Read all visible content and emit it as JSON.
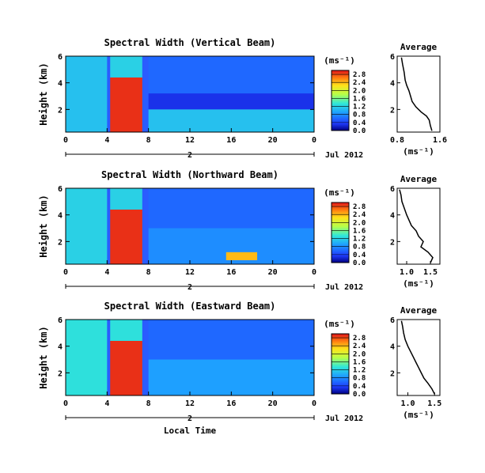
{
  "figure": {
    "panels": [
      {
        "title": "Spectral Width (Vertical Beam)",
        "date_label": "Jul 2012",
        "date_day": "2"
      },
      {
        "title": "Spectral Width (Northward Beam)",
        "date_label": "Jul 2012",
        "date_day": "2"
      },
      {
        "title": "Spectral Width (Eastward Beam)",
        "date_label": "Jul 2012",
        "date_day": "2"
      }
    ],
    "ylabel": "Height (km)",
    "xlabel": "Local Time",
    "colorbar_unit": "(ms⁻¹)",
    "profile_title": "Average",
    "profile_unit": "(ms⁻¹)"
  },
  "chart_data": [
    {
      "type": "heatmap",
      "title": "Spectral Width (Vertical Beam)",
      "ylabel": "Height (km)",
      "x_ticks": [
        "0",
        "4",
        "8",
        "12",
        "16",
        "20",
        "0"
      ],
      "y_ticks": [
        "2",
        "4",
        "6"
      ],
      "xlim": [
        0,
        24
      ],
      "ylim": [
        0.3,
        6.0
      ],
      "colorbar_ticks": [
        "0.0",
        "0.4",
        "0.8",
        "1.2",
        "1.6",
        "2.0",
        "2.4",
        "2.8"
      ],
      "colorbar_range": [
        0.0,
        3.0
      ],
      "cells": [
        {
          "t0": 0,
          "t1": 4,
          "h0": 0.3,
          "h1": 6.0,
          "v": 1.1
        },
        {
          "t0": 4.3,
          "t1": 7.4,
          "h0": 0.3,
          "h1": 4.4,
          "v": 2.9
        },
        {
          "t0": 4.3,
          "t1": 7.4,
          "h0": 4.4,
          "h1": 6.0,
          "v": 1.2
        },
        {
          "t0": 8,
          "t1": 24,
          "h0": 3.2,
          "h1": 6.0,
          "v": 0.6
        },
        {
          "t0": 8,
          "t1": 24,
          "h0": 2.0,
          "h1": 3.2,
          "v": 0.3
        },
        {
          "t0": 8,
          "t1": 24,
          "h0": 0.3,
          "h1": 2.0,
          "v": 1.1
        }
      ]
    },
    {
      "type": "heatmap",
      "title": "Spectral Width (Northward Beam)",
      "ylabel": "Height (km)",
      "x_ticks": [
        "0",
        "4",
        "8",
        "12",
        "16",
        "20",
        "0"
      ],
      "y_ticks": [
        "2",
        "4",
        "6"
      ],
      "xlim": [
        0,
        24
      ],
      "ylim": [
        0.3,
        6.0
      ],
      "colorbar_ticks": [
        "0.0",
        "0.4",
        "0.8",
        "1.2",
        "1.6",
        "2.0",
        "2.4",
        "2.8"
      ],
      "colorbar_range": [
        0.0,
        3.0
      ],
      "cells": [
        {
          "t0": 0,
          "t1": 4,
          "h0": 0.3,
          "h1": 6.0,
          "v": 1.2
        },
        {
          "t0": 4.3,
          "t1": 7.4,
          "h0": 0.3,
          "h1": 4.4,
          "v": 2.9
        },
        {
          "t0": 4.3,
          "t1": 7.4,
          "h0": 4.4,
          "h1": 6.0,
          "v": 1.2
        },
        {
          "t0": 8,
          "t1": 24,
          "h0": 3.0,
          "h1": 6.0,
          "v": 0.6
        },
        {
          "t0": 8,
          "t1": 24,
          "h0": 0.3,
          "h1": 3.0,
          "v": 0.8
        },
        {
          "t0": 15.5,
          "t1": 18.5,
          "h0": 0.6,
          "h1": 1.2,
          "v": 2.4
        }
      ]
    },
    {
      "type": "heatmap",
      "title": "Spectral Width (Eastward Beam)",
      "ylabel": "Height (km)",
      "xlabel": "Local Time",
      "x_ticks": [
        "0",
        "4",
        "8",
        "12",
        "16",
        "20",
        "0"
      ],
      "y_ticks": [
        "2",
        "4",
        "6"
      ],
      "xlim": [
        0,
        24
      ],
      "ylim": [
        0.3,
        6.0
      ],
      "colorbar_ticks": [
        "0.0",
        "0.4",
        "0.8",
        "1.2",
        "1.6",
        "2.0",
        "2.4",
        "2.8"
      ],
      "colorbar_range": [
        0.0,
        3.0
      ],
      "cells": [
        {
          "t0": 0,
          "t1": 4,
          "h0": 0.3,
          "h1": 6.0,
          "v": 1.3
        },
        {
          "t0": 4.3,
          "t1": 7.4,
          "h0": 0.3,
          "h1": 4.4,
          "v": 2.9
        },
        {
          "t0": 4.3,
          "t1": 7.4,
          "h0": 4.4,
          "h1": 6.0,
          "v": 1.3
        },
        {
          "t0": 8,
          "t1": 24,
          "h0": 3.0,
          "h1": 6.0,
          "v": 0.6
        },
        {
          "t0": 8,
          "t1": 24,
          "h0": 0.3,
          "h1": 3.0,
          "v": 0.9
        }
      ]
    },
    {
      "type": "line",
      "title": "Average",
      "xlabel": "(ms⁻¹)",
      "x_ticks": [
        "0.8",
        "1.6"
      ],
      "y_ticks": [
        "2",
        "4",
        "6"
      ],
      "xlim": [
        0.8,
        1.6
      ],
      "ylim": [
        0.3,
        6.0
      ],
      "x": [
        1.45,
        1.42,
        1.4,
        1.35,
        1.25,
        1.15,
        1.08,
        1.05,
        1.02,
        0.98,
        0.95,
        0.93,
        0.9,
        0.88
      ],
      "y": [
        0.4,
        0.8,
        1.2,
        1.5,
        1.8,
        2.2,
        2.6,
        3.0,
        3.4,
        3.8,
        4.2,
        4.8,
        5.4,
        5.9
      ]
    },
    {
      "type": "line",
      "title": "Average",
      "xlabel": "(ms⁻¹)",
      "x_ticks": [
        "1.0",
        "1.5"
      ],
      "y_ticks": [
        "2",
        "4",
        "6"
      ],
      "xlim": [
        0.8,
        1.7
      ],
      "ylim": [
        0.3,
        6.0
      ],
      "x": [
        1.5,
        1.55,
        1.45,
        1.3,
        1.35,
        1.25,
        1.2,
        1.1,
        1.05,
        1.0,
        0.95,
        0.9,
        0.88,
        0.85
      ],
      "y": [
        0.4,
        0.8,
        1.2,
        1.6,
        2.0,
        2.4,
        2.8,
        3.2,
        3.6,
        4.0,
        4.5,
        5.0,
        5.5,
        5.9
      ]
    },
    {
      "type": "line",
      "title": "Average",
      "xlabel": "(ms⁻¹)",
      "x_ticks": [
        "1.0",
        "1.5"
      ],
      "y_ticks": [
        "2",
        "4",
        "6"
      ],
      "xlim": [
        0.8,
        1.6
      ],
      "ylim": [
        0.3,
        6.0
      ],
      "x": [
        1.5,
        1.45,
        1.38,
        1.3,
        1.25,
        1.2,
        1.15,
        1.1,
        1.05,
        1.0,
        0.95,
        0.92,
        0.9,
        0.88
      ],
      "y": [
        0.4,
        0.8,
        1.2,
        1.6,
        2.0,
        2.4,
        2.8,
        3.2,
        3.6,
        4.0,
        4.5,
        5.0,
        5.5,
        5.9
      ]
    }
  ]
}
